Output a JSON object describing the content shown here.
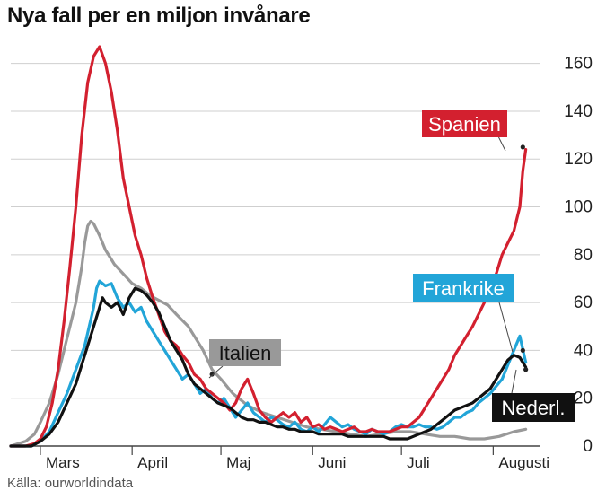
{
  "chart_data": {
    "type": "line",
    "title": "Nya fall per en miljon invånare",
    "source": "Källa: ourworldindata",
    "xlabel": "",
    "ylabel": "",
    "ylim": [
      0,
      170
    ],
    "y_ticks": [
      0,
      20,
      40,
      60,
      80,
      100,
      120,
      140,
      160
    ],
    "x_unit": "days since 1 March 2020",
    "x_range": [
      -10,
      172
    ],
    "x_ticks": [
      {
        "label": "Mars",
        "x": 0
      },
      {
        "label": "April",
        "x": 31
      },
      {
        "label": "Maj",
        "x": 61
      },
      {
        "label": "Juni",
        "x": 92
      },
      {
        "label": "Juli",
        "x": 122
      },
      {
        "label": "Augusti",
        "x": 153
      }
    ],
    "grid": true,
    "series": [
      {
        "name": "Italien",
        "color": "#999999",
        "x": [
          -10,
          -5,
          -2,
          0,
          3,
          6,
          9,
          12,
          14,
          15,
          16,
          17,
          18,
          20,
          22,
          25,
          28,
          31,
          34,
          37,
          40,
          43,
          46,
          50,
          55,
          58,
          61,
          65,
          70,
          75,
          80,
          85,
          90,
          95,
          100,
          105,
          110,
          115,
          120,
          125,
          130,
          135,
          140,
          145,
          150,
          155,
          160,
          164
        ],
        "values": [
          0,
          2,
          5,
          10,
          18,
          30,
          45,
          60,
          75,
          85,
          92,
          94,
          93,
          88,
          82,
          76,
          72,
          68,
          66,
          63,
          61,
          59,
          55,
          50,
          40,
          32,
          28,
          22,
          17,
          14,
          12,
          10,
          8,
          7,
          6,
          5,
          4,
          5,
          6,
          6,
          5,
          4,
          4,
          3,
          3,
          4,
          6,
          7
        ]
      },
      {
        "name": "Frankrike",
        "color": "#22a5d8",
        "x": [
          -10,
          -3,
          0,
          3,
          6,
          9,
          12,
          15,
          18,
          19,
          20,
          22,
          24,
          26,
          28,
          30,
          32,
          34,
          36,
          38,
          40,
          42,
          44,
          46,
          48,
          50,
          52,
          54,
          56,
          58,
          60,
          62,
          64,
          66,
          68,
          70,
          72,
          74,
          76,
          78,
          80,
          82,
          84,
          86,
          88,
          90,
          92,
          94,
          96,
          98,
          100,
          102,
          104,
          106,
          108,
          110,
          112,
          114,
          116,
          118,
          120,
          122,
          124,
          126,
          128,
          130,
          132,
          134,
          136,
          138,
          140,
          142,
          144,
          146,
          148,
          150,
          152,
          154,
          156,
          158,
          160,
          162,
          164
        ],
        "values": [
          0,
          0,
          2,
          6,
          14,
          22,
          32,
          42,
          58,
          66,
          69,
          67,
          68,
          62,
          58,
          60,
          56,
          58,
          52,
          48,
          44,
          40,
          36,
          32,
          28,
          30,
          26,
          22,
          24,
          20,
          18,
          20,
          16,
          12,
          15,
          18,
          14,
          12,
          10,
          12,
          11,
          9,
          8,
          10,
          7,
          6,
          8,
          6,
          9,
          12,
          10,
          8,
          9,
          7,
          6,
          5,
          7,
          6,
          5,
          6,
          8,
          9,
          8,
          8,
          9,
          8,
          8,
          7,
          8,
          10,
          12,
          12,
          14,
          15,
          18,
          20,
          22,
          25,
          28,
          34,
          40,
          46,
          35
        ]
      },
      {
        "name": "Spanien",
        "color": "#d3202f",
        "x": [
          -10,
          -5,
          -2,
          0,
          2,
          4,
          6,
          8,
          10,
          12,
          14,
          16,
          18,
          20,
          22,
          24,
          26,
          28,
          30,
          32,
          34,
          36,
          38,
          40,
          42,
          44,
          46,
          48,
          50,
          52,
          54,
          56,
          58,
          60,
          62,
          64,
          66,
          68,
          70,
          72,
          74,
          76,
          78,
          80,
          82,
          84,
          86,
          88,
          90,
          92,
          94,
          96,
          98,
          100,
          102,
          104,
          106,
          108,
          110,
          112,
          114,
          116,
          118,
          120,
          122,
          124,
          126,
          128,
          130,
          132,
          134,
          136,
          138,
          140,
          142,
          144,
          146,
          148,
          150,
          152,
          154,
          156,
          158,
          160,
          162,
          163,
          164
        ],
        "values": [
          0,
          0,
          1,
          3,
          8,
          18,
          32,
          52,
          75,
          100,
          130,
          152,
          163,
          167,
          160,
          148,
          132,
          112,
          100,
          88,
          80,
          70,
          62,
          55,
          48,
          44,
          42,
          38,
          35,
          30,
          28,
          24,
          22,
          20,
          18,
          15,
          18,
          24,
          28,
          22,
          15,
          12,
          10,
          12,
          14,
          12,
          14,
          10,
          12,
          8,
          9,
          7,
          8,
          7,
          6,
          7,
          8,
          6,
          6,
          7,
          6,
          6,
          6,
          7,
          8,
          8,
          10,
          12,
          16,
          20,
          24,
          28,
          32,
          38,
          42,
          46,
          50,
          55,
          60,
          68,
          72,
          80,
          85,
          90,
          100,
          115,
          124
        ]
      },
      {
        "name": "Nederl.",
        "color": "#111111",
        "x": [
          -10,
          -3,
          0,
          3,
          6,
          9,
          12,
          14,
          16,
          18,
          20,
          21,
          22,
          24,
          26,
          28,
          30,
          32,
          34,
          36,
          38,
          40,
          42,
          44,
          46,
          48,
          50,
          52,
          54,
          56,
          58,
          60,
          62,
          64,
          66,
          68,
          70,
          72,
          74,
          76,
          78,
          80,
          82,
          84,
          86,
          88,
          90,
          92,
          94,
          96,
          98,
          100,
          102,
          104,
          106,
          108,
          110,
          112,
          114,
          116,
          118,
          120,
          122,
          124,
          126,
          128,
          130,
          132,
          134,
          136,
          138,
          140,
          142,
          144,
          146,
          148,
          150,
          152,
          154,
          156,
          158,
          160,
          162,
          164
        ],
        "values": [
          0,
          0,
          2,
          5,
          10,
          18,
          26,
          34,
          42,
          50,
          58,
          62,
          60,
          58,
          60,
          55,
          62,
          66,
          65,
          63,
          60,
          56,
          50,
          44,
          40,
          36,
          30,
          26,
          24,
          22,
          20,
          18,
          17,
          16,
          14,
          12,
          11,
          11,
          10,
          10,
          9,
          8,
          8,
          7,
          7,
          6,
          6,
          6,
          5,
          5,
          5,
          5,
          5,
          4,
          4,
          4,
          4,
          4,
          4,
          4,
          3,
          3,
          3,
          3,
          4,
          5,
          6,
          7,
          9,
          11,
          13,
          15,
          16,
          17,
          18,
          20,
          22,
          24,
          28,
          32,
          36,
          38,
          37,
          33
        ]
      }
    ],
    "annotations": [
      {
        "text": "Spanien",
        "series": "Spanien",
        "at_x": 163,
        "at_y": 125
      },
      {
        "text": "Frankrike",
        "series": "Frankrike",
        "at_x": 163,
        "at_y": 40
      },
      {
        "text": "Italien",
        "series": "Italien",
        "at_x": 58,
        "at_y": 30
      },
      {
        "text": "Nederl.",
        "series": "Nederl.",
        "at_x": 164,
        "at_y": 32
      }
    ]
  }
}
